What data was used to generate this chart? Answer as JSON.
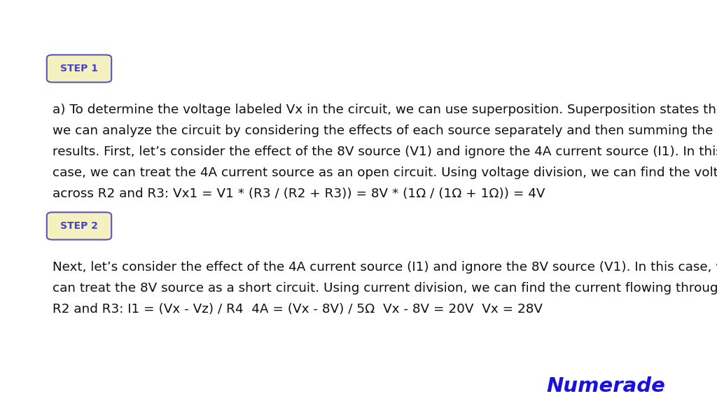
{
  "background_color": "#ffffff",
  "step1_label": "STEP 1",
  "step2_label": "STEP 2",
  "step_box_facecolor": "#f5f0c0",
  "step_box_edgecolor": "#5555bb",
  "step_label_color": "#4444cc",
  "step_label_fontsize": 10,
  "body_text_color": "#111111",
  "body_fontsize": 13.2,
  "logo_text": "Numerade",
  "logo_color": "#1a10e0",
  "logo_fontsize": 21,
  "para1_lines": [
    "a) To determine the voltage labeled Vx in the circuit, we can use superposition. Superposition states that",
    "we can analyze the circuit by considering the effects of each source separately and then summing the",
    "results. First, let’s consider the effect of the 8V source (V1) and ignore the 4A current source (I1). In this",
    "case, we can treat the 4A current source as an open circuit. Using voltage division, we can find the voltage",
    "across R2 and R3: Vx1 = V1 * (R3 / (R2 + R3)) = 8V * (1Ω / (1Ω + 1Ω)) = 4V"
  ],
  "para2_lines": [
    "Next, let’s consider the effect of the 4A current source (I1) and ignore the 8V source (V1). In this case, we",
    "can treat the 8V source as a short circuit. Using current division, we can find the current flowing through",
    "R2 and R3: I1 = (Vx - Vz) / R4  4A = (Vx - 8V) / 5Ω  Vx - 8V = 20V  Vx = 28V"
  ]
}
